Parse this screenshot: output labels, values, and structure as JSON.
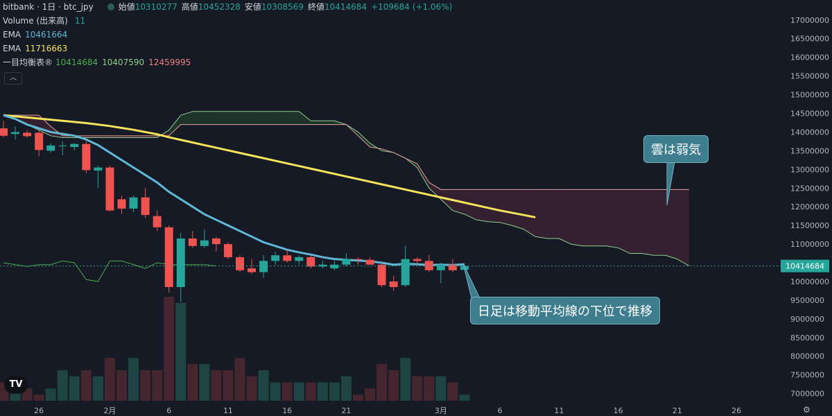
{
  "header": {
    "symbol": "bitbank · 1日 · btc_jpy",
    "ohlc": [
      {
        "label": "始値",
        "value": "10310277"
      },
      {
        "label": "高値",
        "value": "10452328"
      },
      {
        "label": "安値",
        "value": "10308569"
      },
      {
        "label": "終値",
        "value": "10414684"
      }
    ],
    "change": "+109684 (+1.06%)",
    "volume_label": "Volume (出来高)",
    "volume_value": "11",
    "ema1_label": "EMA",
    "ema1_value": "10461664",
    "ema2_label": "EMA",
    "ema2_value": "11716663",
    "ichimoku_label": "一目均衡表®",
    "ichimoku_values": [
      "10414684",
      "10407590",
      "12459995"
    ],
    "collapse_icon": "chevron-up-icon"
  },
  "annotations": {
    "cloud": "雲は弱気",
    "price": "日足は移動平均線の下位で推移"
  },
  "price_tag": "10414684",
  "logo_text": "TV",
  "colors": {
    "background": "#161a25",
    "up": "#26a69a",
    "down": "#ef5350",
    "ema_fast": "#5fb9d6",
    "ema_slow": "#f5e45a",
    "span_a": "#8fd18f",
    "span_b": "#e8a0a0",
    "lagging": "#4caf50",
    "cloud_bull": "#1e3a2c",
    "cloud_bear": "#3a2234"
  },
  "chart_data": {
    "type": "candlestick",
    "ylim": [
      6900000,
      17200000
    ],
    "y_ticks": [
      "17000000",
      "16500000",
      "16000000",
      "15500000",
      "15000000",
      "14500000",
      "14000000",
      "13500000",
      "13000000",
      "12500000",
      "12000000",
      "11500000",
      "11000000",
      "10500000",
      "10000000",
      "9500000",
      "9000000",
      "8500000",
      "8000000",
      "7500000",
      "7000000"
    ],
    "x_ticks": [
      "26",
      "2月",
      "6",
      "11",
      "16",
      "21",
      "3月",
      "6",
      "11",
      "16",
      "21",
      "26"
    ],
    "candles": [
      {
        "date": "01-24",
        "o": 14100000,
        "h": 14300000,
        "l": 13850000,
        "c": 13900000
      },
      {
        "date": "01-25",
        "o": 13950000,
        "h": 14150000,
        "l": 13800000,
        "c": 14000000
      },
      {
        "date": "01-26",
        "o": 13980000,
        "h": 14050000,
        "l": 13850000,
        "c": 13890000
      },
      {
        "date": "01-27",
        "o": 13980000,
        "h": 14050000,
        "l": 13350000,
        "c": 13520000
      },
      {
        "date": "01-28",
        "o": 13500000,
        "h": 13700000,
        "l": 13450000,
        "c": 13640000
      },
      {
        "date": "01-29",
        "o": 13640000,
        "h": 13750000,
        "l": 13380000,
        "c": 13640000
      },
      {
        "date": "01-30",
        "o": 13600000,
        "h": 13700000,
        "l": 13500000,
        "c": 13680000
      },
      {
        "date": "01-31",
        "o": 13680000,
        "h": 13750000,
        "l": 12900000,
        "c": 12980000
      },
      {
        "date": "02-01",
        "o": 12970000,
        "h": 13100000,
        "l": 12500000,
        "c": 13050000
      },
      {
        "date": "02-02",
        "o": 13050000,
        "h": 13100000,
        "l": 11870000,
        "c": 11900000
      },
      {
        "date": "02-03",
        "o": 12200000,
        "h": 12300000,
        "l": 11800000,
        "c": 11950000
      },
      {
        "date": "02-04",
        "o": 11950000,
        "h": 12300000,
        "l": 11850000,
        "c": 12250000
      },
      {
        "date": "02-05",
        "o": 12250000,
        "h": 12500000,
        "l": 11700000,
        "c": 11780000
      },
      {
        "date": "02-06",
        "o": 11750000,
        "h": 11900000,
        "l": 11350000,
        "c": 11450000
      },
      {
        "date": "02-07",
        "o": 11450000,
        "h": 11500000,
        "l": 9700000,
        "c": 9850000
      },
      {
        "date": "02-08",
        "o": 9850000,
        "h": 11300000,
        "l": 9450000,
        "c": 11150000
      },
      {
        "date": "02-09",
        "o": 11150000,
        "h": 11350000,
        "l": 10900000,
        "c": 10950000
      },
      {
        "date": "02-10",
        "o": 10950000,
        "h": 11400000,
        "l": 10900000,
        "c": 11100000
      },
      {
        "date": "02-11",
        "o": 11150000,
        "h": 11200000,
        "l": 10800000,
        "c": 11000000
      },
      {
        "date": "02-12",
        "o": 11000000,
        "h": 11050000,
        "l": 10600000,
        "c": 10650000
      },
      {
        "date": "02-13",
        "o": 10650000,
        "h": 10700000,
        "l": 10250000,
        "c": 10300000
      },
      {
        "date": "02-14",
        "o": 10350000,
        "h": 10600000,
        "l": 10200000,
        "c": 10250000
      },
      {
        "date": "02-15",
        "o": 10250000,
        "h": 10700000,
        "l": 10100000,
        "c": 10550000
      },
      {
        "date": "02-16",
        "o": 10550000,
        "h": 10800000,
        "l": 10450000,
        "c": 10700000
      },
      {
        "date": "02-17",
        "o": 10700000,
        "h": 10850000,
        "l": 10500000,
        "c": 10550000
      },
      {
        "date": "02-18",
        "o": 10550000,
        "h": 10700000,
        "l": 10450000,
        "c": 10650000
      },
      {
        "date": "02-19",
        "o": 10650000,
        "h": 10700000,
        "l": 10350000,
        "c": 10400000
      },
      {
        "date": "02-20",
        "o": 10400000,
        "h": 10550000,
        "l": 10350000,
        "c": 10450000
      },
      {
        "date": "02-21",
        "o": 10350000,
        "h": 10550000,
        "l": 10300000,
        "c": 10450000
      },
      {
        "date": "02-22",
        "o": 10450000,
        "h": 10750000,
        "l": 10400000,
        "c": 10600000
      },
      {
        "date": "02-23",
        "o": 10600000,
        "h": 10650000,
        "l": 10450000,
        "c": 10580000
      },
      {
        "date": "02-24",
        "o": 10580000,
        "h": 10650000,
        "l": 10450000,
        "c": 10450000
      },
      {
        "date": "02-25",
        "o": 10450000,
        "h": 10500000,
        "l": 9850000,
        "c": 9900000
      },
      {
        "date": "02-26",
        "o": 10000000,
        "h": 10150000,
        "l": 9750000,
        "c": 9850000
      },
      {
        "date": "02-27",
        "o": 9900000,
        "h": 10950000,
        "l": 9850000,
        "c": 10600000
      },
      {
        "date": "02-28",
        "o": 10600000,
        "h": 10650000,
        "l": 10450000,
        "c": 10550000
      },
      {
        "date": "03-01",
        "o": 10550000,
        "h": 10700000,
        "l": 10250000,
        "c": 10300000
      },
      {
        "date": "03-02",
        "o": 10300000,
        "h": 10500000,
        "l": 9950000,
        "c": 10450000
      },
      {
        "date": "03-03",
        "o": 10450000,
        "h": 10600000,
        "l": 10250000,
        "c": 10300000
      },
      {
        "date": "03-04",
        "o": 10310277,
        "h": 10452328,
        "l": 10308569,
        "c": 10414684
      }
    ],
    "volume": [
      3,
      2,
      2,
      1,
      2,
      5,
      4,
      5,
      4,
      7,
      5,
      7,
      5,
      5,
      17,
      16,
      6,
      6,
      5,
      5,
      7,
      4,
      5,
      3,
      3,
      3,
      3,
      3,
      3,
      4,
      1,
      2,
      6,
      5,
      7,
      4,
      4,
      4,
      3,
      1
    ],
    "ema_fast": [
      14450000,
      14350000,
      14200000,
      14100000,
      14000000,
      13950000,
      13900000,
      13800000,
      13650000,
      13450000,
      13250000,
      13050000,
      12850000,
      12650000,
      12400000,
      12200000,
      12000000,
      11800000,
      11650000,
      11500000,
      11350000,
      11200000,
      11050000,
      10950000,
      10850000,
      10780000,
      10720000,
      10650000,
      10600000,
      10580000,
      10560000,
      10540000,
      10500000,
      10450000,
      10470000,
      10460000,
      10440000,
      10450000,
      10440000,
      10461664
    ],
    "ema_slow": [
      14450000,
      14420000,
      14390000,
      14360000,
      14330000,
      14300000,
      14270000,
      14240000,
      14200000,
      14160000,
      14110000,
      14060000,
      14000000,
      13940000,
      13860000,
      13790000,
      13720000,
      13650000,
      13580000,
      13510000,
      13440000,
      13370000,
      13300000,
      13230000,
      13160000,
      13090000,
      13020000,
      12950000,
      12880000,
      12810000,
      12740000,
      12670000,
      12600000,
      12530000,
      12460000,
      12390000,
      12320000,
      12250000,
      12180000,
      12110000,
      12040000,
      11970000,
      11900000,
      11840000,
      11780000,
      11716663
    ],
    "span_a": [
      14450000,
      14350000,
      14200000,
      14050000,
      13900000,
      13850000,
      13850000,
      13850000,
      13850000,
      13850000,
      13850000,
      13850000,
      13850000,
      13850000,
      14050000,
      14450000,
      14550000,
      14550000,
      14550000,
      14550000,
      14550000,
      14550000,
      14550000,
      14550000,
      14550000,
      14550000,
      14300000,
      14300000,
      14300000,
      14200000,
      14000000,
      13700000,
      13500000,
      13450000,
      13300000,
      13050000,
      12500000,
      12200000,
      11900000,
      11800000,
      11650000,
      11600000,
      11580000,
      11500000,
      11400000,
      11200000,
      11150000,
      11150000,
      11000000,
      10950000,
      10950000,
      10950000,
      10900000,
      10750000,
      10750000,
      10700000,
      10700000,
      10600000,
      10414684
    ],
    "span_b": [
      14450000,
      14450000,
      14450000,
      14450000,
      14150000,
      13900000,
      13900000,
      13900000,
      13900000,
      13900000,
      13900000,
      13900000,
      13900000,
      13900000,
      13900000,
      14200000,
      14200000,
      14200000,
      14200000,
      14200000,
      14200000,
      14200000,
      14200000,
      14200000,
      14200000,
      14200000,
      14200000,
      14200000,
      14200000,
      14200000,
      13900000,
      13600000,
      13550000,
      13450000,
      13300000,
      13150000,
      12650000,
      12459995,
      12459995,
      12459995,
      12459995,
      12459995,
      12459995,
      12459995,
      12459995,
      12459995,
      12459995,
      12459995,
      12459995,
      12459995,
      12459995,
      12459995,
      12459995,
      12459995,
      12459995,
      12459995,
      12459995,
      12459995,
      12459995
    ],
    "lagging": [
      10500000,
      10450000,
      10400000,
      10450000,
      10450000,
      10550000,
      10500000,
      10050000,
      10000000,
      10550000,
      10550000,
      10450000,
      10350000,
      10500000,
      10450000,
      10450000,
      10450000,
      10450000,
      10414684
    ],
    "last_price": 10414684
  }
}
